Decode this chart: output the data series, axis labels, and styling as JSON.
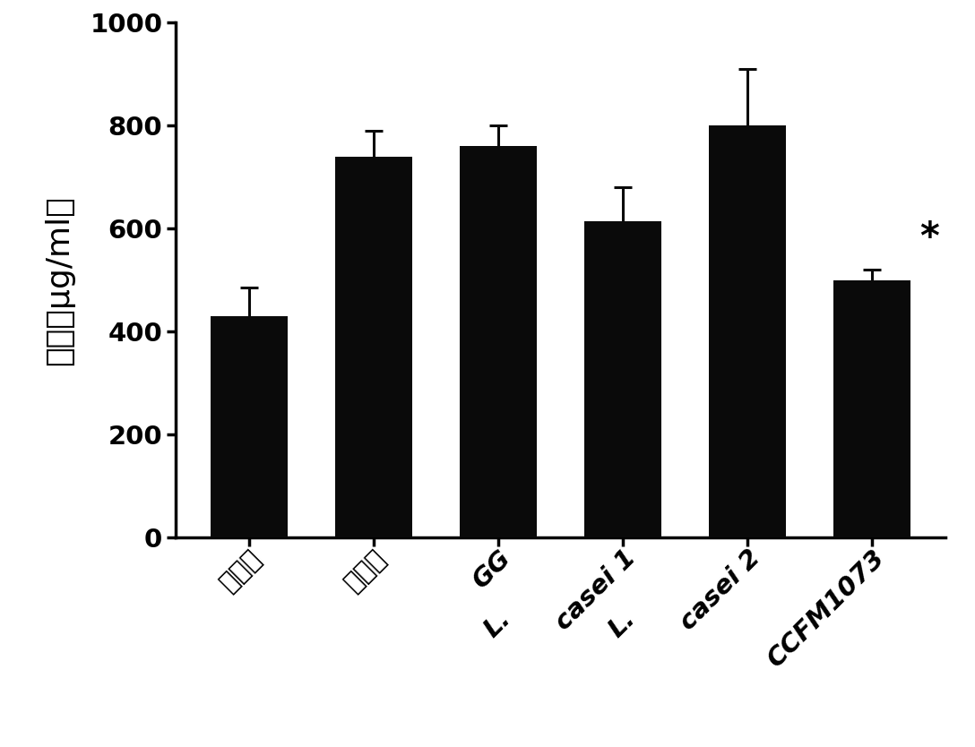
{
  "categories_display": [
    "空白组",
    "模型组",
    "GG",
    "casei 1",
    "casei 2",
    "CCFM1073"
  ],
  "values": [
    430,
    740,
    760,
    615,
    800,
    500
  ],
  "errors": [
    55,
    50,
    40,
    65,
    110,
    20
  ],
  "bar_color": "#0a0a0a",
  "error_color": "#0a0a0a",
  "ylabel": "浓度（μg/ml）",
  "ylim": [
    0,
    1000
  ],
  "yticks": [
    0,
    200,
    400,
    600,
    800,
    1000
  ],
  "background_color": "#ffffff",
  "bar_width": 0.62,
  "significance_label": "*",
  "significance_bar_index": 5
}
